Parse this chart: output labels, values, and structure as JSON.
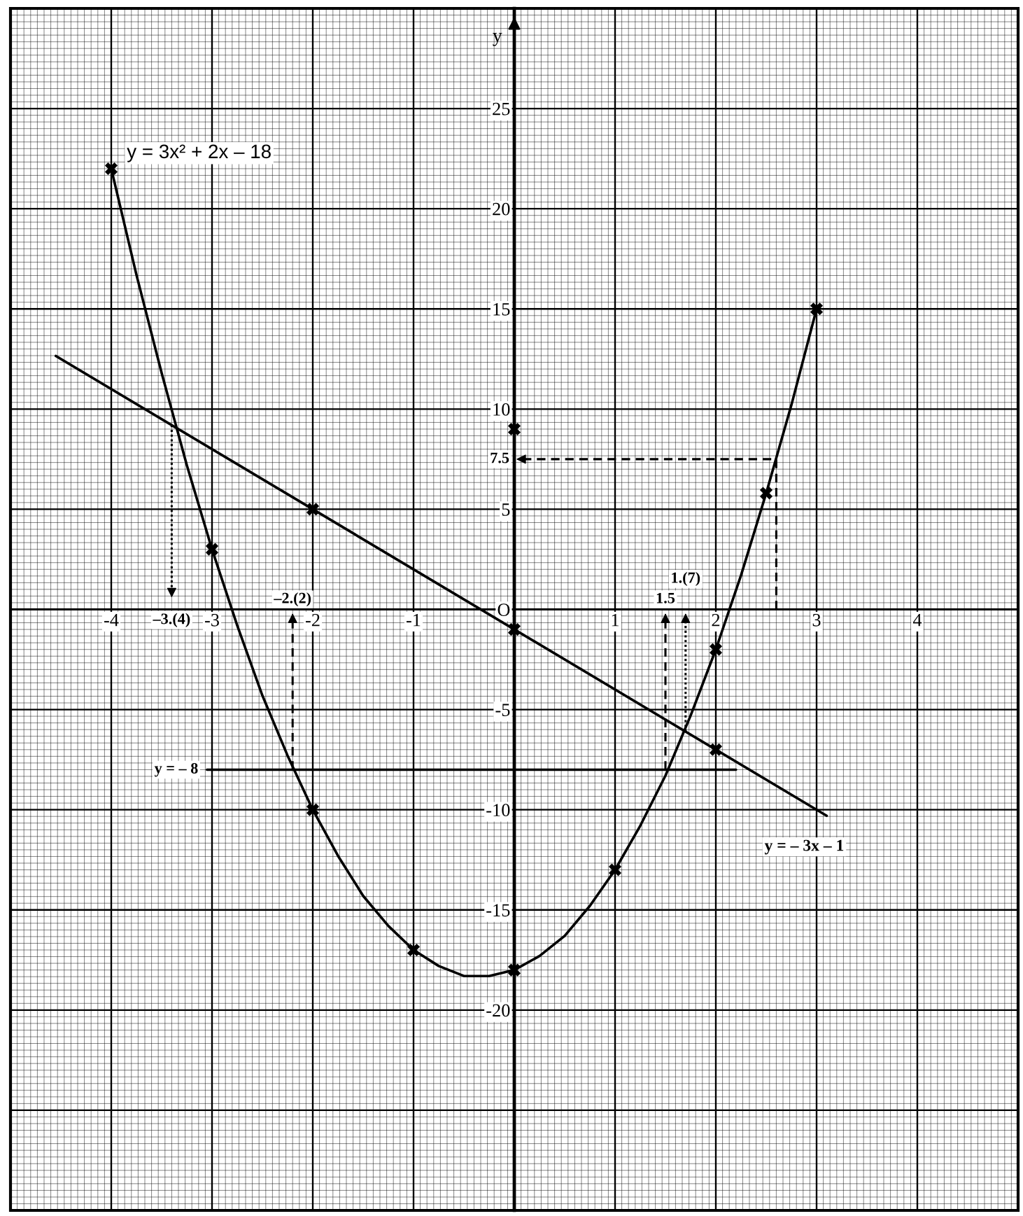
{
  "chart_data": {
    "type": "line",
    "ylabel": "y",
    "xlim": [
      -5,
      5
    ],
    "ylim": [
      -30,
      30
    ],
    "xticks": [
      {
        "value": -5,
        "label": null
      },
      -4,
      -3,
      -2,
      -1,
      {
        "value": 0,
        "label": null
      },
      1,
      2,
      3,
      4,
      {
        "value": 5,
        "label": null
      }
    ],
    "yticks": [
      {
        "value": -30,
        "label": null
      },
      {
        "value": -25,
        "label": null
      },
      -20,
      -15,
      -10,
      -5,
      {
        "value": 0,
        "label": "O"
      },
      5,
      10,
      15,
      20,
      25,
      {
        "value": 30,
        "label": null
      }
    ],
    "grid": true,
    "series": [
      {
        "name": "y = 3x² + 2x – 18",
        "color": "#000000",
        "x": [
          -4,
          -3.75,
          -3.5,
          -3.25,
          -3,
          -2.75,
          -2.5,
          -2.25,
          -2,
          -1.75,
          -1.5,
          -1.25,
          -1,
          -0.75,
          -0.5,
          -0.25,
          0,
          0.25,
          0.5,
          0.75,
          1,
          1.25,
          1.5,
          1.75,
          2,
          2.25,
          2.5,
          2.75,
          3
        ],
        "values": [
          22,
          16.7,
          11.8,
          7.2,
          3,
          -0.8,
          -4.3,
          -7.3,
          -10,
          -12.3,
          -14.3,
          -15.8,
          -17,
          -17.8,
          -18.3,
          -18.3,
          -18,
          -17.3,
          -16.3,
          -14.8,
          -13,
          -10.8,
          -8.3,
          -5.3,
          -2,
          1.7,
          5.8,
          10.2,
          15
        ]
      },
      {
        "name": "y = – 3x – 1",
        "color": "#000000",
        "x": [
          -4.55,
          3.1
        ],
        "values": [
          12.65,
          -10.3
        ]
      },
      {
        "name": "y = – 8",
        "color": "#000000",
        "x": [
          -3.05,
          2.2
        ],
        "values": [
          -8,
          -8
        ]
      },
      {
        "type": "scatter",
        "color": "#000000",
        "marker": "cross",
        "x": [
          -4,
          -3,
          -2,
          -1,
          0,
          1,
          2,
          2.5,
          3,
          -2,
          0,
          2,
          0
        ],
        "values": [
          22,
          3,
          -10,
          -17,
          -18,
          -13,
          -2,
          5.8,
          15,
          5,
          -1,
          -7,
          9
        ]
      },
      {
        "color": "#000000",
        "line_style": "dotted",
        "x": [
          -3.4,
          -3.4
        ],
        "values": [
          9.2,
          1.0
        ]
      },
      {
        "color": "#000000",
        "line_style": "dashed",
        "x": [
          -2.2,
          -2.2
        ],
        "values": [
          -8,
          -0.6
        ]
      },
      {
        "color": "#000000",
        "line_style": "dashed",
        "x": [
          1.5,
          1.5
        ],
        "values": [
          -8,
          -0.6
        ]
      },
      {
        "color": "#000000",
        "line_style": "dotted",
        "x": [
          1.7,
          1.7
        ],
        "values": [
          -6.1,
          -0.6
        ]
      },
      {
        "color": "#000000",
        "line_style": "dashed",
        "x": [
          2.6,
          2.6,
          0.1
        ],
        "values": [
          0,
          7.5,
          7.5
        ]
      }
    ],
    "annotations": [
      {
        "text": "–3.(4)",
        "x": -3.4,
        "y": 1.0
      },
      {
        "text": "–2.(2)",
        "x": -2.2,
        "y": -0.6
      },
      {
        "text": "1.5",
        "x": 1.5,
        "y": -0.6
      },
      {
        "text": "1.(7)",
        "x": 1.7,
        "y": -0.6
      },
      {
        "text": "7.5",
        "x": 0.1,
        "y": 7.5
      }
    ]
  }
}
